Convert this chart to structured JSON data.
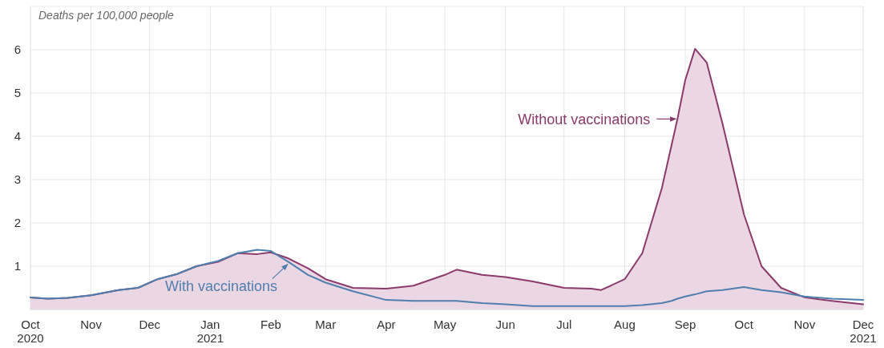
{
  "chart_data": {
    "type": "line",
    "ylabel": "Deaths per 100,000 people",
    "x": [
      "2020-10-01",
      "2020-10-10",
      "2020-10-20",
      "2020-11-01",
      "2020-11-15",
      "2020-11-25",
      "2020-12-05",
      "2020-12-15",
      "2020-12-25",
      "2021-01-05",
      "2021-01-15",
      "2021-01-25",
      "2021-02-01",
      "2021-02-10",
      "2021-02-20",
      "2021-03-01",
      "2021-03-15",
      "2021-04-01",
      "2021-04-15",
      "2021-05-01",
      "2021-05-07",
      "2021-05-20",
      "2021-06-01",
      "2021-06-15",
      "2021-07-01",
      "2021-07-15",
      "2021-07-20",
      "2021-08-01",
      "2021-08-10",
      "2021-08-20",
      "2021-08-25",
      "2021-08-28",
      "2021-09-01",
      "2021-09-06",
      "2021-09-12",
      "2021-09-20",
      "2021-10-01",
      "2021-10-10",
      "2021-10-20",
      "2021-11-01",
      "2021-11-15",
      "2021-12-01"
    ],
    "series": [
      {
        "type": "area",
        "color": "#8b3a6b",
        "values": [
          0.28,
          0.25,
          0.27,
          0.33,
          0.45,
          0.5,
          0.7,
          0.82,
          1.0,
          1.1,
          1.3,
          1.28,
          1.32,
          1.18,
          0.95,
          0.7,
          0.5,
          0.48,
          0.55,
          0.8,
          0.92,
          0.8,
          0.75,
          0.65,
          0.5,
          0.48,
          0.45,
          0.7,
          1.3,
          2.8,
          3.8,
          4.4,
          5.3,
          6.02,
          5.7,
          4.3,
          2.2,
          1.0,
          0.5,
          0.28,
          0.2,
          0.12
        ]
      },
      {
        "color": "#4f7fae",
        "values": [
          0.28,
          0.25,
          0.27,
          0.33,
          0.45,
          0.5,
          0.7,
          0.82,
          1.0,
          1.12,
          1.3,
          1.38,
          1.35,
          1.1,
          0.8,
          0.62,
          0.42,
          0.22,
          0.2,
          0.2,
          0.2,
          0.15,
          0.12,
          0.08,
          0.08,
          0.08,
          0.08,
          0.08,
          0.1,
          0.15,
          0.2,
          0.25,
          0.3,
          0.35,
          0.42,
          0.45,
          0.52,
          0.45,
          0.4,
          0.3,
          0.25,
          0.22
        ]
      }
    ],
    "ylim": [
      0,
      7
    ],
    "yticks": [
      1,
      2,
      3,
      4,
      5,
      6
    ],
    "xlim": [
      "2020-10-01",
      "2021-12-01"
    ],
    "xticks": [
      {
        "value": "2020-10-01",
        "label": "Oct\n2020"
      },
      {
        "value": "2020-11-01",
        "label": "Nov"
      },
      {
        "value": "2020-12-01",
        "label": "Dec"
      },
      {
        "value": "2021-01-01",
        "label": "Jan\n2021"
      },
      {
        "value": "2021-02-01",
        "label": "Feb"
      },
      {
        "value": "2021-03-01",
        "label": "Mar"
      },
      {
        "value": "2021-04-01",
        "label": "Apr"
      },
      {
        "value": "2021-05-01",
        "label": "May"
      },
      {
        "value": "2021-06-01",
        "label": "Jun"
      },
      {
        "value": "2021-07-01",
        "label": "Jul"
      },
      {
        "value": "2021-08-01",
        "label": "Aug"
      },
      {
        "value": "2021-09-01",
        "label": "Sep"
      },
      {
        "value": "2021-10-01",
        "label": "Oct"
      },
      {
        "value": "2021-11-01",
        "label": "Nov"
      },
      {
        "value": "2021-12-01",
        "label": "Dec\n2021"
      }
    ],
    "grid": true,
    "annotations": [
      {
        "text": "Without vaccinations",
        "x": "2021-08-28",
        "y": 4.4
      },
      {
        "text": "With vaccinations",
        "x": "2021-02-10",
        "y": 1.1
      }
    ]
  }
}
